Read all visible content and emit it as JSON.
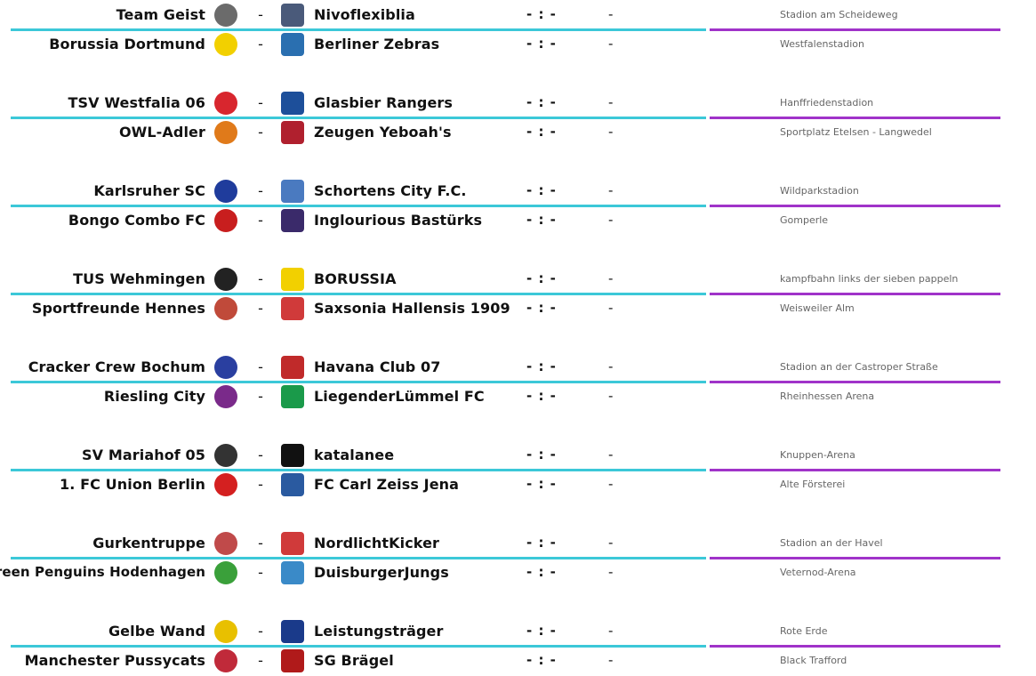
{
  "matchdays": [
    {
      "matches": [
        {
          "home": "Team Geist",
          "home_logo": "team-geist-logo",
          "home_color": "#6b6b6b",
          "away": "Nivoflexiblia",
          "away_logo": "nivoflexiblia-logo",
          "away_color": "#4a5a7a",
          "score": "- : -",
          "result": "-",
          "venue": "Stadion am Scheideweg"
        },
        {
          "home": "Borussia Dortmund",
          "home_logo": "bvb-logo",
          "home_color": "#f2d000",
          "away": "Berliner Zebras",
          "away_logo": "berliner-zebras-logo",
          "away_color": "#2a6fb0",
          "score": "- : -",
          "result": "-",
          "venue": "Westfalenstadion"
        }
      ]
    },
    {
      "matches": [
        {
          "home": "TSV Westfalia 06",
          "home_logo": "westfalia-horse-logo",
          "home_color": "#d8262e",
          "away": "Glasbier Rangers",
          "away_logo": "glasbier-rangers-logo",
          "away_color": "#1d4f9a",
          "score": "- : -",
          "result": "-",
          "venue": "Hanffriedenstadion"
        },
        {
          "home": "OWL-Adler",
          "home_logo": "owl-adler-logo",
          "home_color": "#e07a1a",
          "away": "Zeugen Yeboah's",
          "away_logo": "zeugen-yeboahs-logo",
          "away_color": "#b0202e",
          "score": "- : -",
          "result": "-",
          "venue": "Sportplatz Etelsen - Langwedel"
        }
      ]
    },
    {
      "matches": [
        {
          "home": "Karlsruher SC",
          "home_logo": "ksc-logo",
          "home_color": "#1f3c9c",
          "away": "Schortens City F.C.",
          "away_logo": "schortens-city-logo",
          "away_color": "#4a7ac0",
          "score": "- : -",
          "result": "-",
          "venue": "Wildparkstadion"
        },
        {
          "home": "Bongo Combo FC",
          "home_logo": "bongo-combo-logo",
          "home_color": "#c81e1e",
          "away": "Inglourious Bastürks",
          "away_logo": "inglourious-basturks-logo",
          "away_color": "#3a2a6a",
          "score": "- : -",
          "result": "-",
          "venue": "Gomperle"
        }
      ]
    },
    {
      "matches": [
        {
          "home": "TUS Wehmingen",
          "home_logo": "tus-wehmingen-logo",
          "home_color": "#222222",
          "away": "BORUSSIA",
          "away_logo": "borussia-bvb-logo",
          "away_color": "#f2d000",
          "score": "- : -",
          "result": "-",
          "venue": "kampfbahn links der sieben pappeln"
        },
        {
          "home": "Sportfreunde Hennes",
          "home_logo": "hennes-goat-logo",
          "home_color": "#c04a3a",
          "away": "Saxsonia Hallensis 1909",
          "away_logo": "saxsonia-hallensis-logo",
          "away_color": "#d03a3a",
          "score": "- : -",
          "result": "-",
          "venue": "Weisweiler Alm"
        }
      ]
    },
    {
      "matches": [
        {
          "home": "Cracker Crew Bochum",
          "home_logo": "cracker-crew-logo",
          "home_color": "#2a3fa0",
          "away": "Havana Club 07",
          "away_logo": "havana-club-logo",
          "away_color": "#c02a2a",
          "score": "- : -",
          "result": "-",
          "venue": "Stadion an der Castroper Straße"
        },
        {
          "home": "Riesling City",
          "home_logo": "grapes-logo",
          "home_color": "#7a2a8a",
          "away": "LiegenderLümmel FC",
          "away_logo": "liegender-luemmel-logo",
          "away_color": "#1a9a4a",
          "score": "- : -",
          "result": "-",
          "venue": "Rheinhessen Arena"
        }
      ]
    },
    {
      "matches": [
        {
          "home": "SV Mariahof 05",
          "home_logo": "sv-mariahof-logo",
          "home_color": "#333333",
          "away": "katalanee",
          "away_logo": "katalanee-logo",
          "away_color": "#111111",
          "score": "- : -",
          "result": "-",
          "venue": "Knuppen-Arena"
        },
        {
          "home": "1. FC Union Berlin",
          "home_logo": "union-berlin-logo",
          "home_color": "#d42020",
          "away": "FC Carl Zeiss Jena",
          "away_logo": "carl-zeiss-jena-logo",
          "away_color": "#2a5aa0",
          "score": "- : -",
          "result": "-",
          "venue": "Alte Försterei"
        }
      ]
    },
    {
      "matches": [
        {
          "home": "Gurkentruppe",
          "home_logo": "gurkentruppe-logo",
          "home_color": "#c04a4a",
          "away": "NordlichtKicker",
          "away_logo": "nordlichtkicker-logo",
          "away_color": "#d03a3a",
          "score": "- : -",
          "result": "-",
          "venue": "Stadion an der Havel"
        },
        {
          "home": "Green Penguins Hodenhagen",
          "home_logo": "green-penguin-logo",
          "home_color": "#3aa03a",
          "away": "DuisburgerJungs",
          "away_logo": "duisburger-jungs-logo",
          "away_color": "#3a8ac8",
          "score": "- : -",
          "result": "-",
          "venue": "Veternod-Arena"
        }
      ]
    },
    {
      "matches": [
        {
          "home": "Gelbe Wand",
          "home_logo": "gelbe-wand-logo",
          "home_color": "#e8c000",
          "away": "Leistungsträger",
          "away_logo": "leistungstraeger-logo",
          "away_color": "#1a3a8a",
          "score": "- : -",
          "result": "-",
          "venue": "Rote Erde"
        },
        {
          "home": "Manchester Pussycats",
          "home_logo": "manchester-pussycats-logo",
          "home_color": "#c02a3a",
          "away": "SG Brägel",
          "away_logo": "sg-braegel-logo",
          "away_color": "#b01a1a",
          "score": "- : -",
          "result": "-",
          "venue": "Black Trafford"
        }
      ]
    }
  ],
  "colors": {
    "separator_left": "#3cc8d8",
    "separator_right": "#a033c9"
  }
}
